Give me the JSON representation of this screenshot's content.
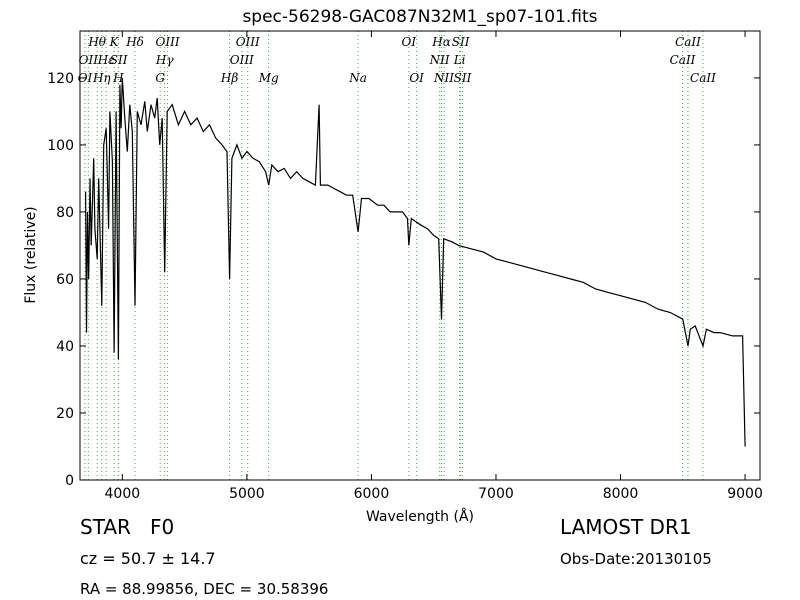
{
  "chart_data": {
    "type": "line",
    "title": "spec-56298-GAC087N32M1_sp07-101.fits",
    "xlabel": "Wavelength (Å)",
    "ylabel": "Flux (relative)",
    "xlim": [
      3660,
      9120
    ],
    "ylim": [
      0,
      134
    ],
    "xticks": [
      4000,
      5000,
      6000,
      7000,
      8000,
      9000
    ],
    "yticks": [
      0,
      20,
      40,
      60,
      80,
      100,
      120
    ],
    "color": "#000000",
    "line_color": "#3cb043",
    "x": [
      3705,
      3712,
      3720,
      3730,
      3740,
      3750,
      3770,
      3780,
      3798,
      3810,
      3835,
      3850,
      3870,
      3890,
      3900,
      3920,
      3934,
      3950,
      3968,
      3980,
      3990,
      4000,
      4020,
      4040,
      4060,
      4080,
      4102,
      4120,
      4150,
      4180,
      4200,
      4230,
      4260,
      4280,
      4300,
      4320,
      4340,
      4360,
      4400,
      4450,
      4500,
      4550,
      4600,
      4650,
      4700,
      4750,
      4800,
      4840,
      4861,
      4880,
      4920,
      4960,
      5000,
      5050,
      5100,
      5150,
      5175,
      5200,
      5250,
      5300,
      5350,
      5400,
      5450,
      5500,
      5550,
      5580,
      5590,
      5650,
      5700,
      5750,
      5800,
      5850,
      5893,
      5920,
      5980,
      6050,
      6100,
      6150,
      6200,
      6250,
      6290,
      6300,
      6320,
      6400,
      6450,
      6500,
      6540,
      6563,
      6580,
      6650,
      6700,
      6800,
      6900,
      7000,
      7100,
      7200,
      7300,
      7400,
      7500,
      7600,
      7700,
      7800,
      7900,
      8000,
      8100,
      8200,
      8300,
      8400,
      8500,
      8542,
      8560,
      8600,
      8662,
      8690,
      8750,
      8800,
      8900,
      8980,
      9000
    ],
    "values": [
      86,
      44,
      80,
      60,
      90,
      70,
      96,
      75,
      66,
      90,
      52,
      100,
      105,
      75,
      110,
      95,
      38,
      110,
      36,
      118,
      105,
      120,
      108,
      98,
      112,
      104,
      52,
      110,
      106,
      113,
      104,
      112,
      108,
      114,
      100,
      108,
      62,
      110,
      112,
      106,
      110,
      106,
      108,
      104,
      106,
      102,
      100,
      98,
      60,
      96,
      100,
      96,
      98,
      96,
      95,
      92,
      88,
      94,
      92,
      93,
      90,
      92,
      90,
      89,
      88,
      112,
      88,
      88,
      87,
      86,
      85,
      85,
      74,
      84,
      84,
      82,
      82,
      80,
      80,
      80,
      78,
      70,
      78,
      76,
      75,
      73,
      72,
      48,
      72,
      71,
      70,
      69,
      68,
      66,
      65,
      64,
      63,
      62,
      61,
      60,
      59,
      57,
      56,
      55,
      54,
      53,
      51,
      50,
      48,
      40,
      45,
      46,
      40,
      45,
      44,
      44,
      43,
      43,
      10
    ],
    "lines": [
      {
        "name": "Hθ",
        "wavelength": 3798
      },
      {
        "name": "K",
        "wavelength": 3934
      },
      {
        "name": "Hδ",
        "wavelength": 4102
      },
      {
        "name": "OIII",
        "wavelength": 4363
      },
      {
        "name": "OIII",
        "wavelength": 5007
      },
      {
        "name": "OI",
        "wavelength": 6300
      },
      {
        "name": "Hα",
        "wavelength": 6563
      },
      {
        "name": "SII",
        "wavelength": 6716
      },
      {
        "name": "CaII",
        "wavelength": 8542
      },
      {
        "name": "OII",
        "wavelength": 3727
      },
      {
        "name": "Hε",
        "wavelength": 3870
      },
      {
        "name": "SII",
        "wavelength": 3970
      },
      {
        "name": "Hγ",
        "wavelength": 4340
      },
      {
        "name": "OIII",
        "wavelength": 4959
      },
      {
        "name": "NII",
        "wavelength": 6548
      },
      {
        "name": "Li",
        "wavelength": 6708
      },
      {
        "name": "CaII",
        "wavelength": 8498
      },
      {
        "name": "OI",
        "wavelength": 3700
      },
      {
        "name": "Hη",
        "wavelength": 3835
      },
      {
        "name": "H",
        "wavelength": 3968
      },
      {
        "name": "G",
        "wavelength": 4304
      },
      {
        "name": "Hβ",
        "wavelength": 4861
      },
      {
        "name": "Mg",
        "wavelength": 5175
      },
      {
        "name": "Na",
        "wavelength": 5893
      },
      {
        "name": "OI",
        "wavelength": 6363
      },
      {
        "name": "NII",
        "wavelength": 6583
      },
      {
        "name": "SII",
        "wavelength": 6731
      },
      {
        "name": "CaII",
        "wavelength": 8662
      }
    ]
  },
  "info": {
    "object": "STAR   F0",
    "redshift": "cz = 50.7 ± 14.7",
    "coords": "RA = 88.99856, DEC = 30.58396",
    "survey": "LAMOST DR1",
    "date": "Obs-Date:20130105"
  }
}
